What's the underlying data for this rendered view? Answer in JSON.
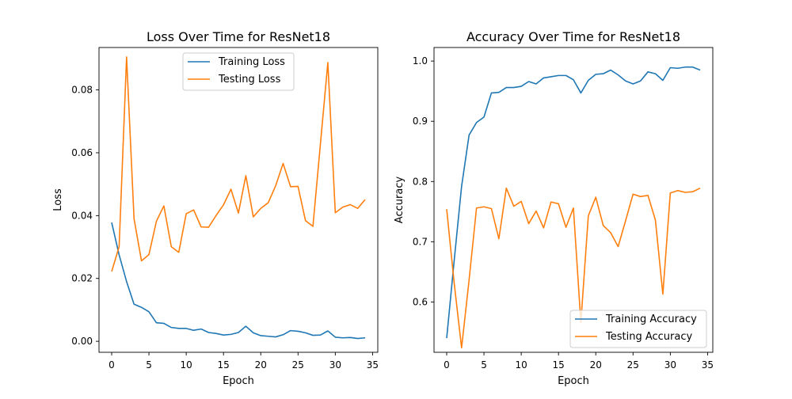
{
  "chart_data": [
    {
      "type": "line",
      "title": "Loss Over Time for ResNet18",
      "xlabel": "Epoch",
      "ylabel": "Loss",
      "xlim": [
        -1.7,
        35.7
      ],
      "ylim": [
        -0.0035,
        0.0935
      ],
      "xticks": [
        0,
        5,
        10,
        15,
        20,
        25,
        30,
        35
      ],
      "yticks": [
        0.0,
        0.02,
        0.04,
        0.06,
        0.08
      ],
      "ytick_labels": [
        "0.00",
        "0.02",
        "0.04",
        "0.06",
        "0.08"
      ],
      "grid": false,
      "legend": {
        "position": "upper center"
      },
      "x": [
        0,
        1,
        2,
        3,
        4,
        5,
        6,
        7,
        8,
        9,
        10,
        11,
        12,
        13,
        14,
        15,
        16,
        17,
        18,
        19,
        20,
        21,
        22,
        23,
        24,
        25,
        26,
        27,
        28,
        29,
        30,
        31,
        32,
        33,
        34
      ],
      "series": [
        {
          "name": "Training Loss",
          "color": "#1f77b4",
          "values": [
            0.0378,
            0.0275,
            0.019,
            0.0118,
            0.0108,
            0.0094,
            0.0059,
            0.0057,
            0.0044,
            0.0041,
            0.0041,
            0.0035,
            0.0039,
            0.0028,
            0.0025,
            0.002,
            0.0022,
            0.0028,
            0.0048,
            0.0027,
            0.0018,
            0.0016,
            0.0014,
            0.0021,
            0.0034,
            0.0032,
            0.0027,
            0.0019,
            0.002,
            0.0033,
            0.0013,
            0.0011,
            0.0012,
            0.0009,
            0.0011
          ]
        },
        {
          "name": "Testing Loss",
          "color": "#ff7f0e",
          "values": [
            0.0222,
            0.0301,
            0.0905,
            0.039,
            0.0256,
            0.0276,
            0.0382,
            0.0431,
            0.0301,
            0.0283,
            0.0406,
            0.0418,
            0.0364,
            0.0363,
            0.04,
            0.0434,
            0.0484,
            0.0408,
            0.0527,
            0.0396,
            0.0423,
            0.0441,
            0.0495,
            0.0566,
            0.0492,
            0.0493,
            0.0384,
            0.0366,
            0.0627,
            0.0887,
            0.0409,
            0.0427,
            0.0435,
            0.0423,
            0.0451
          ]
        }
      ]
    },
    {
      "type": "line",
      "title": "Accuracy Over Time for ResNet18",
      "xlabel": "Epoch",
      "ylabel": "Accuracy",
      "xlim": [
        -1.7,
        35.7
      ],
      "ylim": [
        0.5165,
        1.0225
      ],
      "xticks": [
        0,
        5,
        10,
        15,
        20,
        25,
        30,
        35
      ],
      "yticks": [
        0.6,
        0.7,
        0.8,
        0.9,
        1.0
      ],
      "ytick_labels": [
        "0.6",
        "0.7",
        "0.8",
        "0.9",
        "1.0"
      ],
      "grid": false,
      "legend": {
        "position": "lower right"
      },
      "x": [
        0,
        1,
        2,
        3,
        4,
        5,
        6,
        7,
        8,
        9,
        10,
        11,
        12,
        13,
        14,
        15,
        16,
        17,
        18,
        19,
        20,
        21,
        22,
        23,
        24,
        25,
        26,
        27,
        28,
        29,
        30,
        31,
        32,
        33,
        34
      ],
      "series": [
        {
          "name": "Training Accuracy",
          "color": "#1f77b4",
          "values": [
            0.54,
            0.668,
            0.792,
            0.877,
            0.898,
            0.907,
            0.947,
            0.948,
            0.956,
            0.956,
            0.958,
            0.966,
            0.962,
            0.972,
            0.974,
            0.976,
            0.976,
            0.969,
            0.947,
            0.968,
            0.978,
            0.979,
            0.985,
            0.977,
            0.967,
            0.962,
            0.967,
            0.982,
            0.979,
            0.968,
            0.989,
            0.988,
            0.99,
            0.99,
            0.985
          ]
        },
        {
          "name": "Testing Accuracy",
          "color": "#ff7f0e",
          "values": [
            0.754,
            0.632,
            0.524,
            0.636,
            0.756,
            0.758,
            0.755,
            0.705,
            0.789,
            0.759,
            0.767,
            0.73,
            0.751,
            0.723,
            0.766,
            0.763,
            0.724,
            0.756,
            0.566,
            0.743,
            0.774,
            0.727,
            0.715,
            0.692,
            0.735,
            0.779,
            0.775,
            0.777,
            0.736,
            0.613,
            0.781,
            0.785,
            0.782,
            0.783,
            0.789
          ]
        }
      ]
    }
  ]
}
